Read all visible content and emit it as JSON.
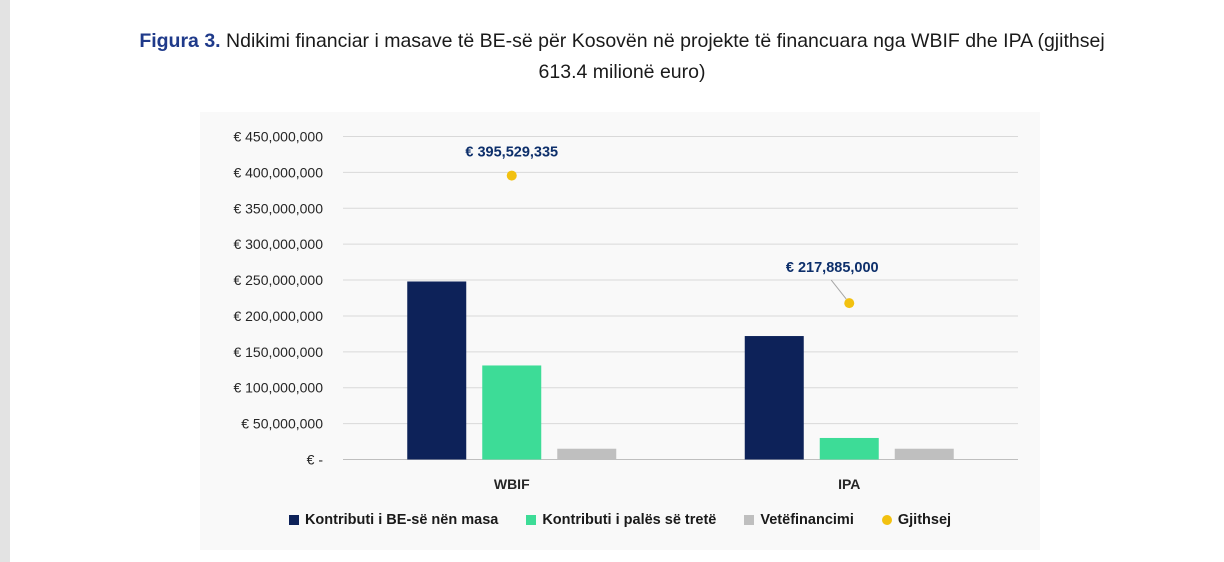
{
  "caption": {
    "lead": "Figura 3.",
    "text": " Ndikimi financiar i masave të BE-së  për Kosovën në projekte të financuara nga WBIF dhe IPA (gjithsej 613.4 milionë euro)"
  },
  "chart_data": {
    "type": "bar",
    "categories": [
      "WBIF",
      "IPA"
    ],
    "series": [
      {
        "name": "Kontributi i BE-së nën masa",
        "values": [
          248000000,
          172000000
        ],
        "color": "#0d2259"
      },
      {
        "name": "Kontributi i palës së tretë",
        "values": [
          131000000,
          30000000
        ],
        "color": "#3ddc97"
      },
      {
        "name": "Vetëfinancimi",
        "values": [
          15000000,
          15000000
        ],
        "color": "#bfbfbf"
      }
    ],
    "points": {
      "name": "Gjithsej",
      "values": [
        395529335,
        217885000
      ],
      "labels": [
        "€ 395,529,335",
        "€ 217,885,000"
      ],
      "color": "#f2c110"
    },
    "y_ticks": [
      "€ -",
      "€ 50,000,000",
      "€ 100,000,000",
      "€ 150,000,000",
      "€ 200,000,000",
      "€ 250,000,000",
      "€ 300,000,000",
      "€ 350,000,000",
      "€ 400,000,000",
      "€ 450,000,000"
    ],
    "ylim": [
      0,
      450000000
    ],
    "grid": true,
    "legend_position": "bottom"
  },
  "legend": [
    {
      "label": "Kontributi i BE-së nën masa",
      "color": "#0d2259",
      "shape": "square"
    },
    {
      "label": "Kontributi i palës së tretë",
      "color": "#3ddc97",
      "shape": "square"
    },
    {
      "label": "Vetëfinancimi",
      "color": "#bfbfbf",
      "shape": "square"
    },
    {
      "label": "Gjithsej",
      "color": "#f2c110",
      "shape": "dot"
    }
  ]
}
